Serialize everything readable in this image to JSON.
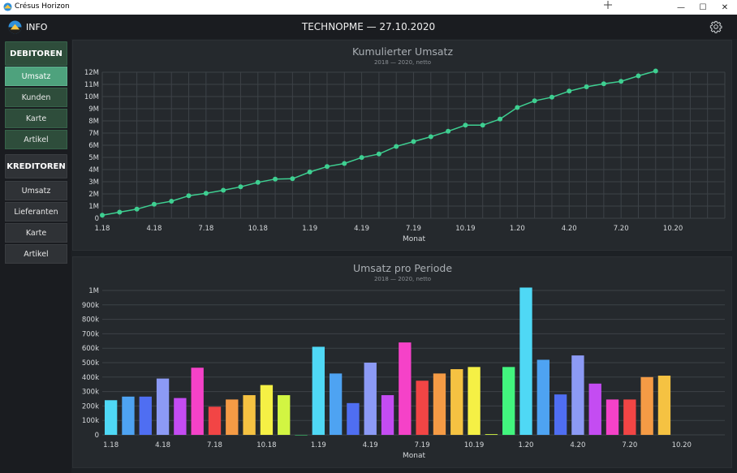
{
  "window": {
    "app_title": "Crésus Horizon",
    "minimize": "—",
    "maximize": "☐",
    "close": "✕"
  },
  "header": {
    "info_label": "INFO",
    "title": "TECHNOPME — 27.10.2020"
  },
  "sidebar": {
    "debitoren": {
      "label": "DEBITOREN",
      "items": [
        "Umsatz",
        "Kunden",
        "Karte",
        "Artikel"
      ]
    },
    "kreditoren": {
      "label": "KREDITOREN",
      "items": [
        "Umsatz",
        "Lieferanten",
        "Karte",
        "Artikel"
      ]
    },
    "active_item": "Umsatz"
  },
  "colors": {
    "line": "#3ecf91",
    "grid": "#3d4247",
    "bar_palette": [
      "#4fd8f5",
      "#4ea3f2",
      "#4f6ef2",
      "#8c9af5",
      "#c44cf2",
      "#f542c8",
      "#f24545",
      "#f59b45",
      "#f5c242",
      "#f5f045",
      "#d2f542",
      "#42f57e"
    ]
  },
  "chart_data": [
    {
      "type": "line",
      "title": "Kumulierter Umsatz",
      "subtitle": "2018 — 2020, netto",
      "xlabel": "Monat",
      "ylabel": "",
      "x_tick_labels": [
        "1.18",
        "4.18",
        "7.18",
        "10.18",
        "1.19",
        "4.19",
        "7.19",
        "10.19",
        "1.20",
        "4.20",
        "7.20",
        "10.20"
      ],
      "y_tick_labels": [
        "0",
        "1M",
        "2M",
        "3M",
        "4M",
        "5M",
        "6M",
        "7M",
        "8M",
        "9M",
        "10M",
        "11M",
        "12M"
      ],
      "ylim": [
        0,
        12000000
      ],
      "grid": true,
      "series": [
        {
          "values": [
            250000,
            500000,
            750000,
            1150000,
            1400000,
            1850000,
            2050000,
            2300000,
            2580000,
            2950000,
            3220000,
            3250000,
            3800000,
            4250000,
            4500000,
            4990000,
            5280000,
            5900000,
            6300000,
            6700000,
            7150000,
            7650000,
            7650000,
            8150000,
            9100000,
            9650000,
            9950000,
            10450000,
            10800000,
            11050000,
            11250000,
            11700000,
            12100000
          ]
        }
      ]
    },
    {
      "type": "bar",
      "title": "Umsatz pro Periode",
      "subtitle": "2018 — 2020, netto",
      "xlabel": "Monat",
      "ylabel": "",
      "x_tick_labels": [
        "1.18",
        "4.18",
        "7.18",
        "10.18",
        "1.19",
        "4.19",
        "7.19",
        "10.19",
        "1.20",
        "4.20",
        "7.20",
        "10.20"
      ],
      "y_tick_labels": [
        "0",
        "100k",
        "200k",
        "300k",
        "400k",
        "500k",
        "600k",
        "700k",
        "800k",
        "900k",
        "1M"
      ],
      "ylim": [
        0,
        1000000
      ],
      "grid": true,
      "series": [
        {
          "values": [
            240000,
            265000,
            265000,
            390000,
            255000,
            465000,
            195000,
            245000,
            275000,
            345000,
            275000,
            0,
            610000,
            425000,
            220000,
            500000,
            275000,
            640000,
            375000,
            425000,
            455000,
            470000,
            5000,
            470000,
            1020000,
            520000,
            280000,
            550000,
            355000,
            245000,
            245000,
            400000,
            410000
          ]
        }
      ]
    }
  ]
}
